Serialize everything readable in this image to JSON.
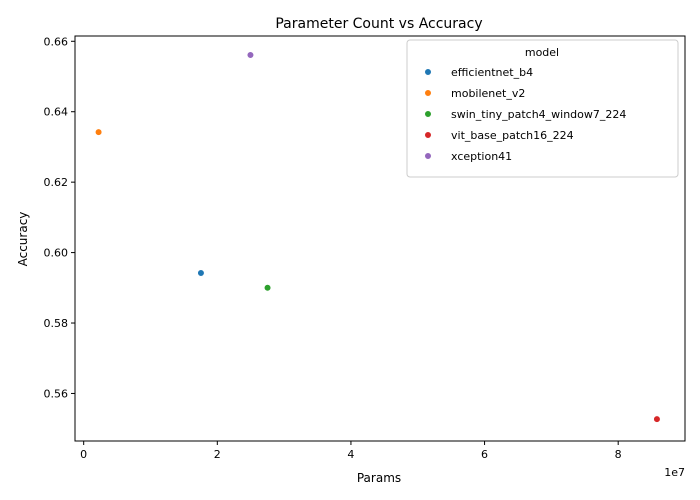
{
  "chart_data": {
    "type": "scatter",
    "title": "Parameter Count vs Accuracy",
    "xlabel": "Params",
    "ylabel": "Accuracy",
    "x_offset_label": "1e7",
    "xlim": [
      -1300000,
      90000000
    ],
    "ylim": [
      0.5465,
      0.6615
    ],
    "x_tick_values": [
      0,
      20000000,
      40000000,
      60000000,
      80000000
    ],
    "x_tick_labels": [
      "0",
      "2",
      "4",
      "6",
      "8"
    ],
    "y_tick_values": [
      0.56,
      0.58,
      0.6,
      0.62,
      0.64,
      0.66
    ],
    "y_tick_labels": [
      "0.56",
      "0.58",
      "0.60",
      "0.62",
      "0.64",
      "0.66"
    ],
    "grid": false,
    "legend": {
      "title": "model",
      "placement": "top-right"
    },
    "series": [
      {
        "name": "efficientnet_b4",
        "color": "#1f77b4",
        "x": [
          17550000
        ],
        "y": [
          0.5942
        ]
      },
      {
        "name": "mobilenet_v2",
        "color": "#ff7f0e",
        "x": [
          2230000
        ],
        "y": [
          0.6342
        ]
      },
      {
        "name": "swin_tiny_patch4_window7_224",
        "color": "#2ca02c",
        "x": [
          27520000
        ],
        "y": [
          0.59
        ]
      },
      {
        "name": "vit_base_patch16_224",
        "color": "#d62728",
        "x": [
          85800000
        ],
        "y": [
          0.5527
        ]
      },
      {
        "name": "xception41",
        "color": "#9467bd",
        "x": [
          24960000
        ],
        "y": [
          0.6561
        ]
      }
    ]
  }
}
